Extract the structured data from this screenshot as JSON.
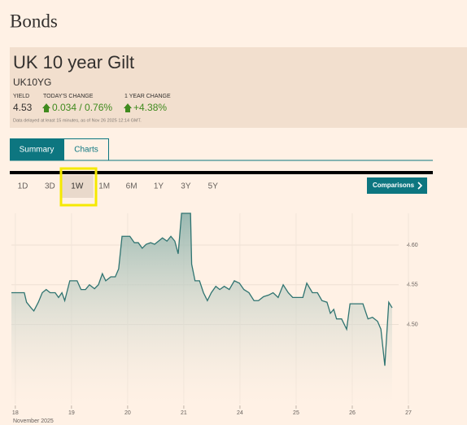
{
  "header": {
    "title": "Bonds"
  },
  "quote": {
    "name": "UK 10 year Gilt",
    "symbol": "UK10YG",
    "stats": [
      {
        "label": "YIELD",
        "value": "4.53"
      },
      {
        "label": "TODAY'S CHANGE",
        "value": "0.034 / 0.76%"
      },
      {
        "label": "1 YEAR CHANGE",
        "value": "+4.38%"
      }
    ],
    "note": "Data delayed at least 15 minutes, as of Nov 26 2025 12:14 GMT."
  },
  "tabs": [
    "Summary",
    "Charts"
  ],
  "periods": [
    "1D",
    "3D",
    "1W",
    "1M",
    "6M",
    "1Y",
    "3Y",
    "5Y"
  ],
  "comparisons": "Comparisons",
  "chart_data": {
    "type": "line",
    "color": "#2f7471",
    "x": [
      -0.07,
      0.16,
      0.2,
      0.28,
      0.33,
      0.41,
      0.48,
      0.55,
      0.62,
      0.71,
      0.77,
      0.83,
      0.88,
      0.97,
      1.1,
      1.17,
      1.25,
      1.32,
      1.41,
      1.48,
      1.55,
      1.61,
      1.7,
      1.78,
      1.84,
      1.9,
      2.04,
      2.12,
      2.19,
      2.26,
      2.33,
      2.41,
      2.48,
      2.55,
      2.62,
      2.7,
      2.77,
      2.84,
      2.9,
      2.96,
      3.12,
      3.14,
      3.2,
      3.28,
      3.35,
      3.42,
      3.49,
      3.57,
      3.64,
      3.72,
      3.81,
      3.9,
      3.99,
      4.07,
      4.16,
      4.25,
      4.33,
      4.42,
      4.51,
      4.59,
      4.68,
      4.77,
      4.86,
      4.94,
      5.03,
      5.12,
      5.19,
      5.29,
      5.38,
      5.46,
      5.55,
      5.61,
      5.67,
      5.72,
      5.81,
      5.9,
      5.96,
      6.19,
      6.28,
      6.36,
      6.45,
      6.51,
      6.58,
      6.62,
      6.65,
      6.71
    ],
    "values": [
      4.54,
      4.54,
      4.528,
      4.521,
      4.517,
      4.528,
      4.54,
      4.544,
      4.54,
      4.54,
      4.534,
      4.54,
      4.53,
      4.555,
      4.555,
      4.544,
      4.544,
      4.55,
      4.545,
      4.55,
      4.564,
      4.555,
      4.56,
      4.56,
      4.57,
      4.611,
      4.611,
      4.603,
      4.603,
      4.596,
      4.601,
      4.603,
      4.601,
      4.605,
      4.609,
      4.605,
      4.611,
      4.605,
      4.589,
      4.64,
      4.64,
      4.576,
      4.555,
      4.555,
      4.54,
      4.53,
      4.54,
      4.548,
      4.544,
      4.548,
      4.544,
      4.555,
      4.552,
      4.544,
      4.54,
      4.53,
      4.53,
      4.535,
      4.537,
      4.54,
      4.534,
      4.55,
      4.54,
      4.534,
      4.534,
      4.534,
      4.552,
      4.54,
      4.54,
      4.53,
      4.528,
      4.514,
      4.519,
      4.507,
      4.507,
      4.494,
      4.526,
      4.526,
      4.507,
      4.509,
      4.504,
      4.494,
      4.448,
      4.494,
      4.528,
      4.521
    ],
    "xlim": [
      -0.07,
      7
    ],
    "xticks": [
      {
        "value": 0,
        "label": "18"
      },
      {
        "value": 1,
        "label": "19"
      },
      {
        "value": 2,
        "label": "20"
      },
      {
        "value": 3,
        "label": "21"
      },
      {
        "value": 4,
        "label": "24"
      },
      {
        "value": 5,
        "label": "25"
      },
      {
        "value": 6,
        "label": "26"
      },
      {
        "value": 7,
        "label": "27"
      }
    ],
    "x_period_label": "November 2025",
    "ylim": [
      4.4,
      4.64
    ],
    "yticks": [
      {
        "value": 4.6,
        "label": "4.60"
      },
      4.55,
      {
        "value": 4.5,
        "label": "4.50"
      }
    ],
    "grid": true
  }
}
